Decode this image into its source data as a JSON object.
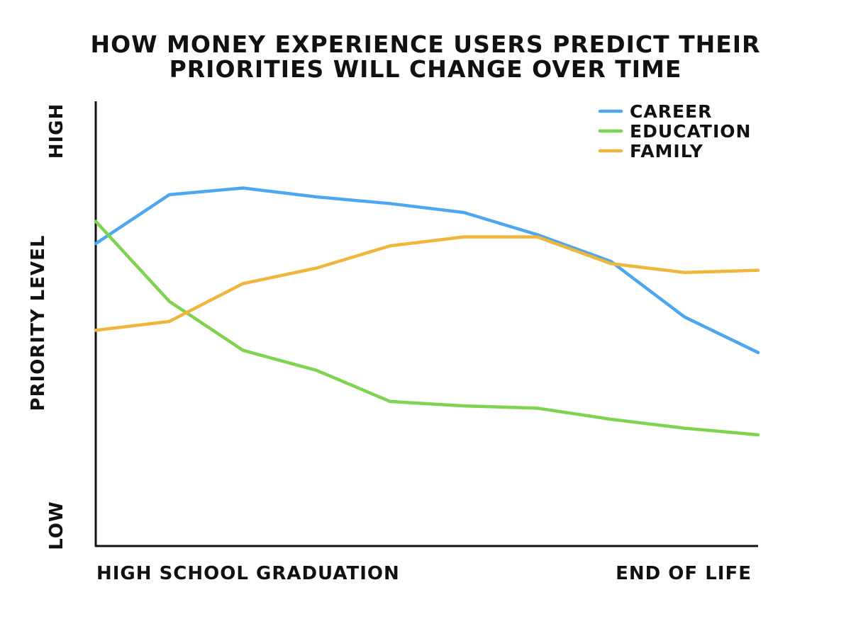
{
  "chart_data": {
    "type": "line",
    "title": [
      "HOW MONEY EXPERIENCE USERS PREDICT THEIR",
      "PRIORITIES WILL CHANGE OVER TIME"
    ],
    "ylabel": "PRIORITY LEVEL",
    "y_tick_labels": {
      "high": "HIGH",
      "low": "LOW"
    },
    "x_tick_labels": {
      "start": "HIGH SCHOOL GRADUATION",
      "end": "END OF LIFE"
    },
    "x": [
      0,
      1,
      2,
      3,
      4,
      5,
      6,
      7,
      8,
      9
    ],
    "xlim": [
      0,
      9
    ],
    "ylim": [
      0,
      100
    ],
    "grid": false,
    "legend_position": "top-right",
    "series": [
      {
        "name": "CAREER",
        "color": "#4da6f0",
        "values": [
          68,
          79,
          80.5,
          78.5,
          77,
          75,
          70,
          64,
          51.5,
          43.5
        ]
      },
      {
        "name": "EDUCATION",
        "color": "#7ed34f",
        "values": [
          73,
          55,
          44,
          39.5,
          32.5,
          31.5,
          31,
          28.5,
          26.5,
          25
        ]
      },
      {
        "name": "FAMILY",
        "color": "#f0b63c",
        "values": [
          48.5,
          50.5,
          59,
          62.5,
          67.5,
          69.5,
          69.5,
          63.5,
          61.5,
          62
        ]
      }
    ]
  }
}
